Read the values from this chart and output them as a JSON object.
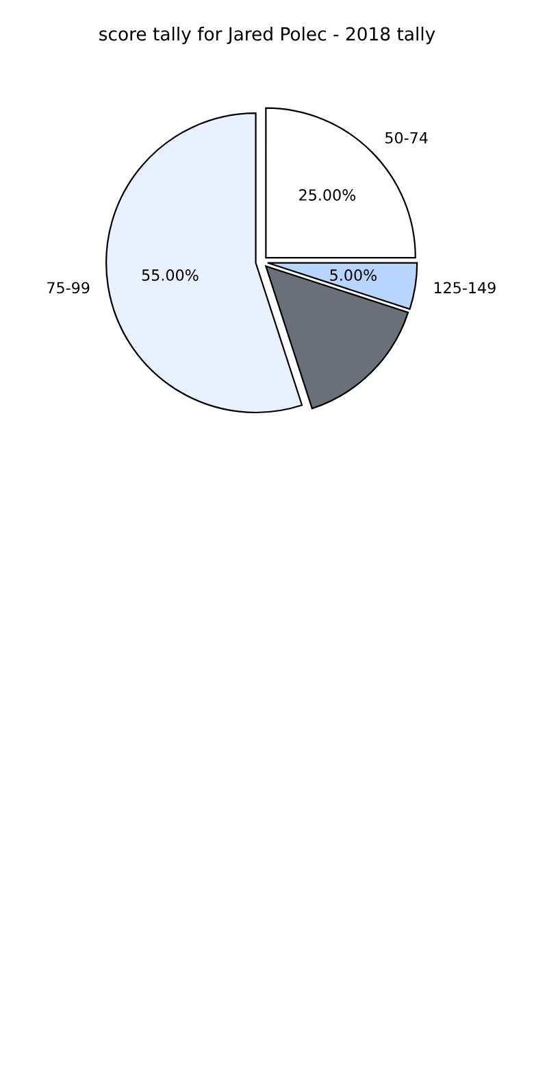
{
  "chart_data": {
    "type": "pie",
    "title": "score tally for Jared Polec - 2018 tally",
    "categories": [
      "50-74",
      "75-99",
      null,
      "125-149"
    ],
    "values": [
      25,
      55,
      15,
      5
    ],
    "colors": [
      "#ffffff",
      "#eaf1fe",
      "#6b6f78",
      "#b7d5fe"
    ],
    "value_labels": [
      "25.00%",
      "55.00%",
      null,
      "5.00%"
    ]
  }
}
